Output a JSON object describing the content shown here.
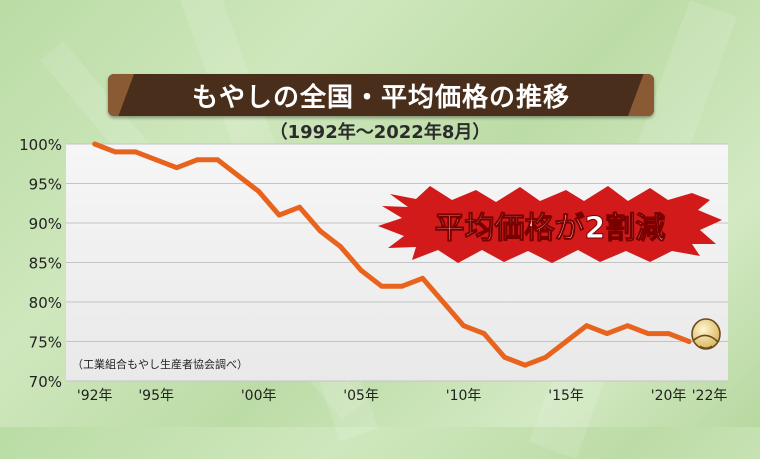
{
  "title": "もやしの全国・平均価格の推移",
  "subtitle": "（1992年～2022年8月）",
  "source_note": "（工業組合もやし生産者協会調べ）",
  "callout": "平均価格が2割減",
  "colors": {
    "line": "#e8641e",
    "callout_fill": "#d21a1a",
    "callout_text": "#ffffff",
    "title_banner": "#4a2e1c"
  },
  "chart_data": {
    "type": "line",
    "title": "もやしの全国・平均価格の推移",
    "subtitle": "（1992年～2022年8月）",
    "xlabel": "",
    "ylabel": "",
    "ylim": [
      70,
      100
    ],
    "grid": true,
    "y_ticks": [
      {
        "value": 100,
        "label": "100%"
      },
      {
        "value": 95,
        "label": "95%"
      },
      {
        "value": 90,
        "label": "90%"
      },
      {
        "value": 85,
        "label": "85%"
      },
      {
        "value": 80,
        "label": "80%"
      },
      {
        "value": 75,
        "label": "75%"
      },
      {
        "value": 70,
        "label": "70%"
      }
    ],
    "x_ticks": [
      {
        "value": 1992,
        "label": "'92年"
      },
      {
        "value": 1995,
        "label": "'95年"
      },
      {
        "value": 2000,
        "label": "'00年"
      },
      {
        "value": 2005,
        "label": "'05年"
      },
      {
        "value": 2010,
        "label": "'10年"
      },
      {
        "value": 2015,
        "label": "'15年"
      },
      {
        "value": 2020,
        "label": "'20年"
      },
      {
        "value": 2022,
        "label": "'22年"
      }
    ],
    "series": [
      {
        "x": [
          1992,
          1993,
          1994,
          1995,
          1996,
          1997,
          1998,
          1999,
          2000,
          2001,
          2002,
          2003,
          2004,
          2005,
          2006,
          2007,
          2008,
          2009,
          2010,
          2011,
          2012,
          2013,
          2014,
          2015,
          2016,
          2017,
          2018,
          2019,
          2020,
          2021
        ],
        "values": [
          100,
          99,
          99,
          98,
          97,
          98,
          98,
          96,
          94,
          91,
          92,
          89,
          87,
          84,
          82,
          82,
          83,
          80,
          77,
          76,
          73,
          72,
          73,
          75,
          77,
          76,
          77,
          76,
          76,
          75
        ]
      }
    ]
  }
}
